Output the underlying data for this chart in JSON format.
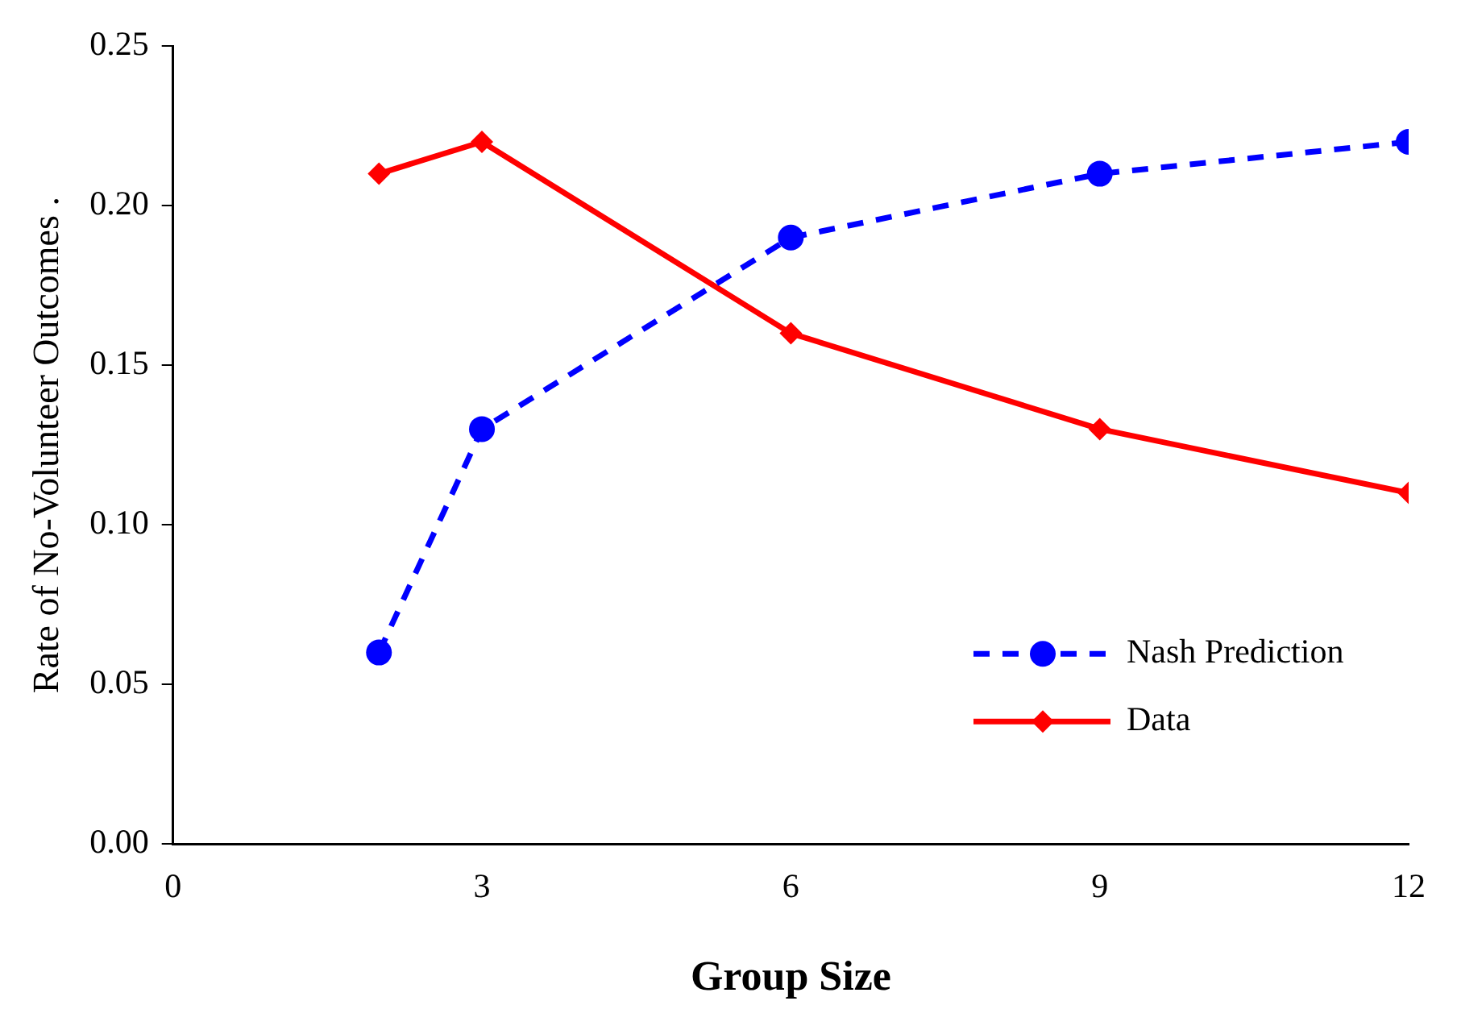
{
  "chart_data": {
    "type": "line",
    "xlabel": "Group Size",
    "ylabel": "Rate of No-Volunteer Outcomes .",
    "x": [
      2,
      3,
      6,
      9,
      12
    ],
    "series": [
      {
        "name": "Nash Prediction",
        "color": "#0000ff",
        "values": [
          0.06,
          0.13,
          0.19,
          0.21,
          0.22
        ],
        "marker": "circle",
        "line_style": "dashed"
      },
      {
        "name": "Data",
        "color": "#ff0000",
        "values": [
          0.21,
          0.22,
          0.16,
          0.13,
          0.11
        ],
        "marker": "diamond",
        "line_style": "solid"
      }
    ],
    "xlim": [
      0,
      12
    ],
    "xticks": [
      0,
      3,
      6,
      9,
      12
    ],
    "ylim": [
      0,
      0.25
    ],
    "yticks": [
      {
        "value": 0,
        "label": "0.00"
      },
      {
        "value": 0.05,
        "label": "0.05"
      },
      {
        "value": 0.1,
        "label": "0.10"
      },
      {
        "value": 0.15,
        "label": "0.15"
      },
      {
        "value": 0.2,
        "label": "0.20"
      },
      {
        "value": 0.25,
        "label": "0.25"
      }
    ],
    "grid": false,
    "legend": "bottom right"
  }
}
